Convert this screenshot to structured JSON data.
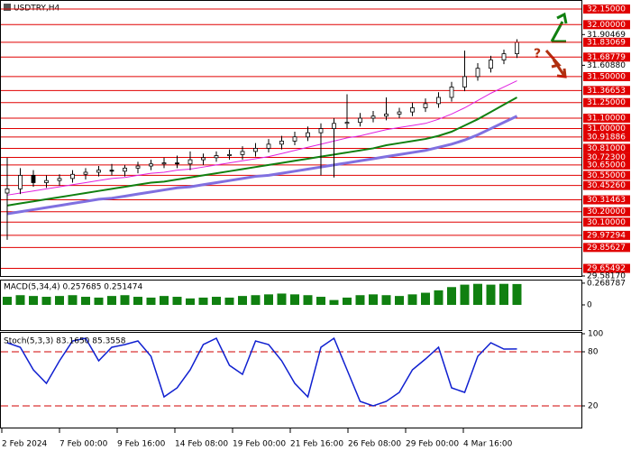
{
  "symbol": "USDTRY,H4",
  "signal_hint": "?",
  "time_axis": [
    "2 Feb 2024",
    "7 Feb 00:00",
    "9 Feb 16:00",
    "14 Feb 08:00",
    "19 Feb 00:00",
    "21 Feb 16:00",
    "26 Feb 08:00",
    "29 Feb 00:00",
    "4 Mar 16:00"
  ],
  "chart_data": [
    {
      "type": "candlestick",
      "ylim": [
        29.5817,
        32.237
      ],
      "yticks": [
        31.90469,
        {
          "value": 31.6088,
          "label": "31.60880"
        },
        {
          "value": 29.5817,
          "label": "29.58170"
        }
      ],
      "levels": [
        {
          "value": 32.15,
          "label": "32.15000"
        },
        {
          "value": 32.0,
          "label": "32.00000"
        },
        {
          "value": 31.68779,
          "label": "31.68779"
        },
        {
          "value": 31.5,
          "label": "31.50000"
        },
        {
          "value": 31.36653,
          "label": "31.36653"
        },
        {
          "value": 31.25,
          "label": "31.25000"
        },
        {
          "value": 31.1,
          "label": "31.10000"
        },
        {
          "value": 31.0,
          "label": "31.00000"
        },
        {
          "value": 30.91886,
          "label": "30.91886"
        },
        {
          "value": 30.81,
          "label": "30.81000"
        },
        {
          "value": 30.723,
          "label": "30.72300"
        },
        {
          "value": 30.65,
          "label": "30.65000"
        },
        {
          "value": 30.55,
          "label": "30.55000"
        },
        {
          "value": 30.4526,
          "label": "30.45260"
        },
        {
          "value": 30.31463,
          "label": "30.31463"
        },
        {
          "value": 30.2,
          "label": "30.20000"
        },
        {
          "value": 30.1,
          "label": "30.10000"
        },
        {
          "value": 29.97294,
          "label": "29.97294"
        },
        {
          "value": 29.85627,
          "label": "29.85627"
        },
        {
          "value": 29.65492,
          "label": "29.65492"
        }
      ],
      "current_price": {
        "value": 31.83069,
        "label": "31.83069"
      },
      "open": [
        30.38,
        30.42,
        30.55,
        30.48,
        30.5,
        30.52,
        30.56,
        30.58,
        30.6,
        30.59,
        30.62,
        30.64,
        30.66,
        30.67,
        30.66,
        30.7,
        30.72,
        30.74,
        30.75,
        30.78,
        30.81,
        30.85,
        30.88,
        30.92,
        30.96,
        31.0,
        31.05,
        31.06,
        31.1,
        31.12,
        31.14,
        31.16,
        31.2,
        31.24,
        31.3,
        31.4,
        31.5,
        31.58,
        31.66,
        31.72
      ],
      "high": [
        30.72,
        30.62,
        30.6,
        30.55,
        30.56,
        30.6,
        30.62,
        30.64,
        30.66,
        30.65,
        30.68,
        30.7,
        30.72,
        30.74,
        30.78,
        30.76,
        30.78,
        30.8,
        30.83,
        30.86,
        30.9,
        30.93,
        30.97,
        31.02,
        31.05,
        31.1,
        31.33,
        31.15,
        31.17,
        31.3,
        31.2,
        31.25,
        31.29,
        31.35,
        31.45,
        31.75,
        31.63,
        31.7,
        31.76,
        31.86
      ],
      "low": [
        29.93,
        30.37,
        30.44,
        30.43,
        30.45,
        30.48,
        30.51,
        30.54,
        30.55,
        30.54,
        30.57,
        30.6,
        30.62,
        30.62,
        30.6,
        30.65,
        30.68,
        30.7,
        30.7,
        30.73,
        30.77,
        30.8,
        30.84,
        30.88,
        30.55,
        30.53,
        31.0,
        31.02,
        31.06,
        31.08,
        31.1,
        31.12,
        31.16,
        31.2,
        31.26,
        31.36,
        31.46,
        31.54,
        31.62,
        31.68
      ],
      "close": [
        30.42,
        30.55,
        30.48,
        30.5,
        30.52,
        30.56,
        30.58,
        30.6,
        30.59,
        30.62,
        30.64,
        30.66,
        30.67,
        30.66,
        30.7,
        30.72,
        30.74,
        30.75,
        30.78,
        30.81,
        30.85,
        30.88,
        30.92,
        30.96,
        31.0,
        31.05,
        31.06,
        31.1,
        31.12,
        31.14,
        31.16,
        31.2,
        31.24,
        31.3,
        31.4,
        31.5,
        31.58,
        31.66,
        31.72,
        31.83069
      ],
      "series": [
        {
          "color": "#e020e0",
          "values": [
            30.36,
            30.38,
            30.4,
            30.42,
            30.44,
            30.46,
            30.48,
            30.5,
            30.52,
            30.53,
            30.55,
            30.57,
            30.58,
            30.6,
            30.61,
            30.63,
            30.65,
            30.67,
            30.69,
            30.71,
            30.73,
            30.76,
            30.79,
            30.82,
            30.85,
            30.88,
            30.91,
            30.93,
            30.96,
            30.99,
            31.01,
            31.03,
            31.05,
            31.09,
            31.14,
            31.2,
            31.27,
            31.34,
            31.4,
            31.46
          ]
        },
        {
          "color": "#108010",
          "values": [
            30.26,
            30.28,
            30.3,
            30.32,
            30.34,
            30.36,
            30.38,
            30.4,
            30.42,
            30.44,
            30.46,
            30.48,
            30.49,
            30.51,
            30.53,
            30.55,
            30.57,
            30.59,
            30.61,
            30.63,
            30.65,
            30.67,
            30.69,
            30.71,
            30.73,
            30.75,
            30.77,
            30.79,
            30.81,
            30.84,
            30.86,
            30.88,
            30.9,
            30.93,
            30.97,
            31.03,
            31.09,
            31.16,
            31.23,
            31.3
          ]
        },
        {
          "color": "#8070e0",
          "values": [
            30.18,
            30.2,
            30.22,
            30.24,
            30.26,
            30.28,
            30.3,
            30.32,
            30.33,
            30.35,
            30.37,
            30.39,
            30.41,
            30.43,
            30.44,
            30.46,
            30.48,
            30.5,
            30.52,
            30.54,
            30.55,
            30.57,
            30.59,
            30.61,
            30.63,
            30.65,
            30.67,
            30.69,
            30.71,
            30.73,
            30.75,
            30.77,
            30.79,
            30.82,
            30.85,
            30.89,
            30.94,
            31.0,
            31.06,
            31.12
          ]
        }
      ]
    },
    {
      "type": "histogram",
      "title": "MACD(5,34,4) 0.257685 0.251474",
      "color": "#108010",
      "ylim": [
        0,
        0.29
      ],
      "yticks": [
        0,
        0.268787
      ],
      "values": [
        0.1,
        0.12,
        0.11,
        0.1,
        0.11,
        0.12,
        0.1,
        0.09,
        0.11,
        0.12,
        0.1,
        0.09,
        0.11,
        0.1,
        0.08,
        0.09,
        0.1,
        0.09,
        0.11,
        0.12,
        0.13,
        0.14,
        0.13,
        0.12,
        0.1,
        0.06,
        0.09,
        0.12,
        0.13,
        0.12,
        0.11,
        0.13,
        0.15,
        0.18,
        0.22,
        0.25,
        0.26,
        0.25,
        0.26,
        0.257685
      ]
    },
    {
      "type": "line",
      "title": "Stoch(5,3,3) 83.1650 85.3558",
      "color": "#1020d0",
      "ylim": [
        0,
        100
      ],
      "yticks": [
        100,
        80,
        20
      ],
      "levels": [
        80,
        20
      ],
      "values": [
        90,
        85,
        60,
        45,
        70,
        92,
        95,
        70,
        85,
        88,
        92,
        75,
        30,
        40,
        60,
        88,
        95,
        65,
        55,
        92,
        88,
        70,
        45,
        30,
        85,
        95,
        60,
        25,
        20,
        25,
        35,
        60,
        72,
        85,
        40,
        35,
        75,
        90,
        83,
        83.165
      ]
    }
  ]
}
